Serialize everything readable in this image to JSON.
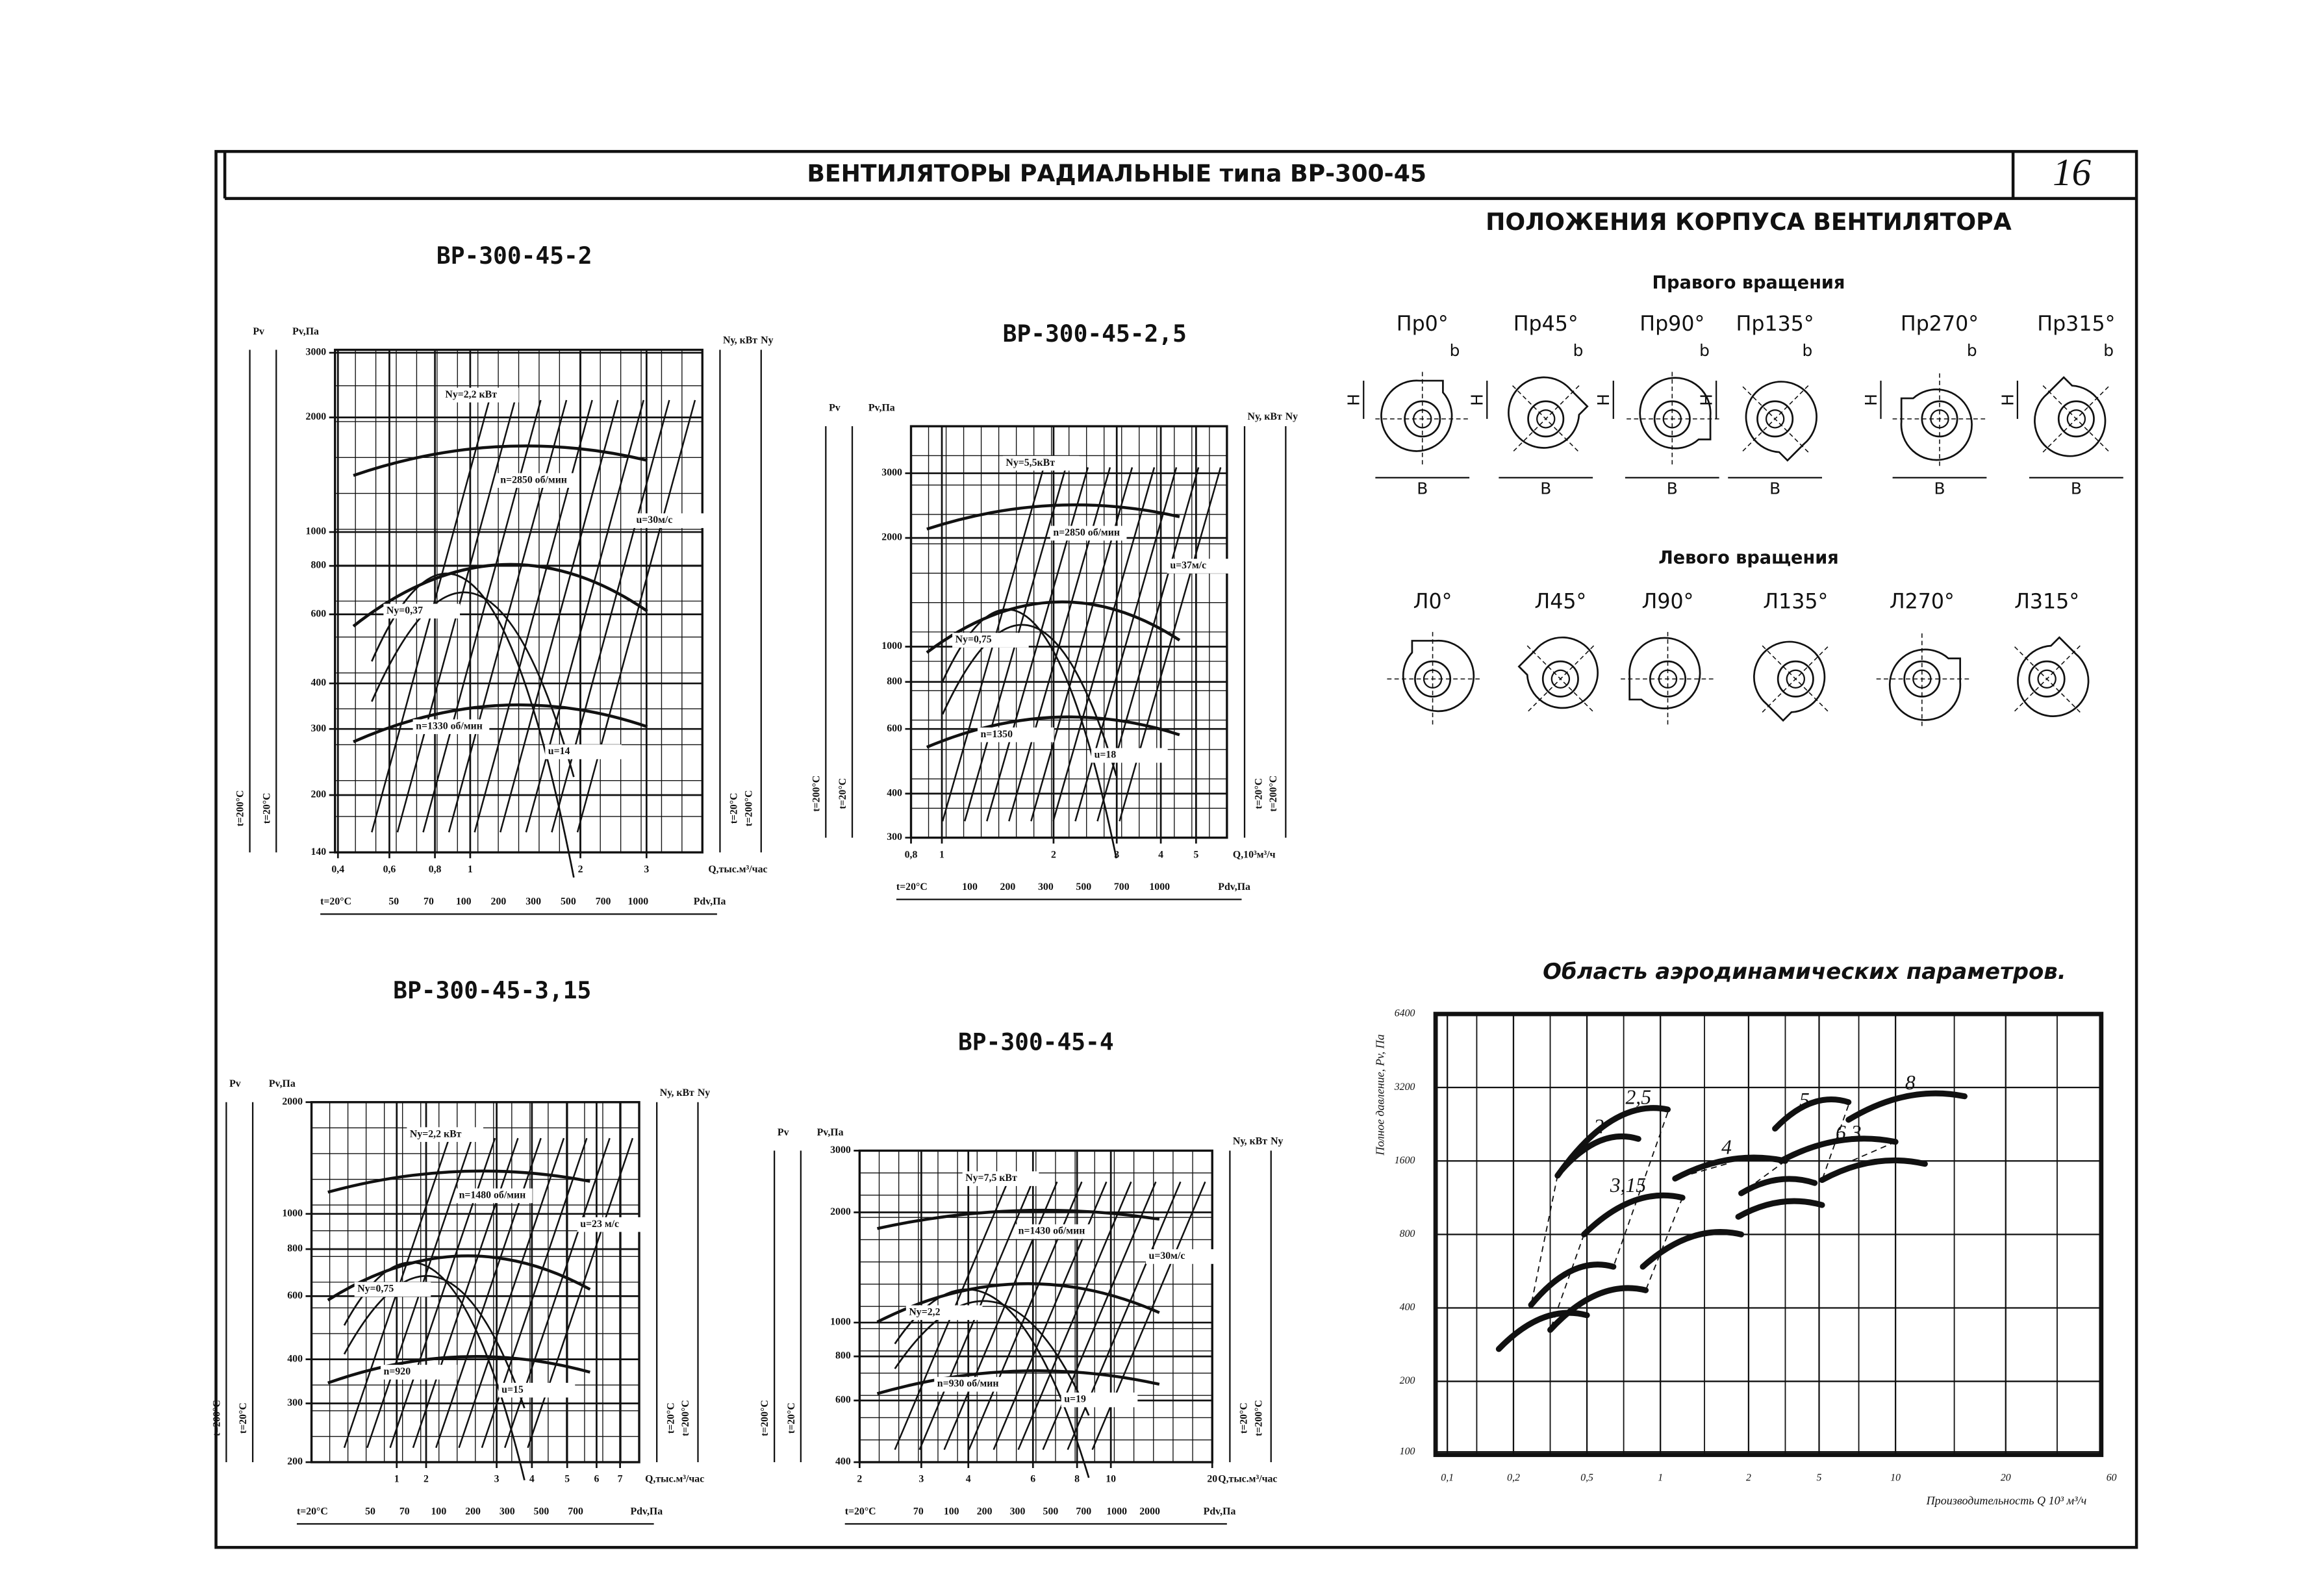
{
  "header": {
    "title": "ВЕНТИЛЯТОРЫ РАДИАЛЬНЫЕ типа ВР-300-45",
    "page": "16"
  },
  "charts": [
    {
      "title": "ВР-300-45-2",
      "y_outer_label": "Pv",
      "y_label": "Pv,Па",
      "n_label": "Nу, кВт",
      "n_outer_label": "Nу",
      "x_label": "Q,тыс.м³/час",
      "yticks": [
        "3000",
        "2000",
        "1000",
        "800",
        "600",
        "400",
        "300",
        "200",
        "140"
      ],
      "xticks": [
        "0,4",
        "0,6",
        "0,8",
        "1",
        "2",
        "3"
      ],
      "pdv_ticks": [
        "50",
        "70",
        "100",
        "200",
        "300",
        "500",
        "700",
        "1000"
      ],
      "pdv_label": "Pdv,Па",
      "t_cold": "t=20°C",
      "t_hot": "t=200°C",
      "annotations": [
        "n=2850 об/мин",
        "u=30м/с",
        "n=1330 об/мин",
        "u=14",
        "Nу=2,2 кВт",
        "Nу=0,37"
      ]
    },
    {
      "title": "ВР-300-45-2,5",
      "y_outer_label": "Pv",
      "y_label": "Pv,Па",
      "n_label": "Nу, кВт",
      "n_outer_label": "Nу",
      "x_label": "Q,10³м³/ч",
      "yticks": [
        "3000",
        "2000",
        "1000",
        "800",
        "600",
        "400",
        "300"
      ],
      "xticks": [
        "0,8",
        "1",
        "2",
        "3",
        "4",
        "5"
      ],
      "pdv_ticks": [
        "100",
        "200",
        "300",
        "500",
        "700",
        "1000"
      ],
      "pdv_label": "Pdv,Па",
      "t_cold": "t=20°C",
      "t_hot": "t=200°C",
      "annotations": [
        "n=2850 об/мин",
        "u=37м/с",
        "n=1350",
        "u=18",
        "Nу=5,5кВт",
        "Nу=0,75"
      ]
    },
    {
      "title": "ВР-300-45-3,15",
      "y_outer_label": "Pv",
      "y_label": "Pv,Па",
      "n_label": "Nу, кВт",
      "n_outer_label": "Nу",
      "x_label": "Q,тыс.м³/час",
      "yticks": [
        "2000",
        "1000",
        "800",
        "600",
        "400",
        "300",
        "200"
      ],
      "xticks": [
        "1",
        "2",
        "3",
        "4",
        "5",
        "6",
        "7"
      ],
      "pdv_ticks": [
        "50",
        "70",
        "100",
        "200",
        "300",
        "500",
        "700"
      ],
      "pdv_label": "Pdv,Па",
      "t_cold": "t=20°C",
      "t_hot": "t=200°C",
      "annotations": [
        "n=1480 об/мин",
        "u=23 м/с",
        "n=920",
        "u=15",
        "Nу=2,2 кВт",
        "Nу=0,75"
      ]
    },
    {
      "title": "ВР-300-45-4",
      "y_outer_label": "Pv",
      "y_label": "Pv,Па",
      "n_label": "Nу, кВт",
      "n_outer_label": "Nу",
      "x_label": "Q,тыс.м³/час",
      "yticks": [
        "3000",
        "2000",
        "1000",
        "800",
        "600",
        "400"
      ],
      "xticks": [
        "2",
        "3",
        "4",
        "6",
        "8",
        "10",
        "20"
      ],
      "pdv_ticks": [
        "70",
        "100",
        "200",
        "300",
        "500",
        "700",
        "1000",
        "2000"
      ],
      "pdv_label": "Pdv,Па",
      "t_cold": "t=20°C",
      "t_hot": "t=200°C",
      "annotations": [
        "n=1430 об/мин",
        "u=30м/с",
        "n=930 об/мин",
        "u=19",
        "Nу=7,5 кВт",
        "Nу=2,2"
      ]
    }
  ],
  "positions": {
    "title": "ПОЛОЖЕНИЯ КОРПУСА ВЕНТИЛЯТОРА",
    "dim_b": "b",
    "dim_h": "H",
    "dim_B": "B",
    "right": {
      "title": "Правого вращения",
      "items": [
        "Пр0°",
        "Пр45°",
        "Пр90°",
        "Пр135°",
        "Пр270°",
        "Пр315°"
      ]
    },
    "left": {
      "title": "Левого вращения",
      "items": [
        "Л0°",
        "Л45°",
        "Л90°",
        "Л135°",
        "Л270°",
        "Л315°"
      ]
    }
  },
  "area": {
    "title": "Область аэродинамических параметров.",
    "y_label": "Полное давление, Pv, Па",
    "x_label": "Производительность Q 10³ м³/ч",
    "yticks": [
      "6400",
      "3200",
      "1600",
      "800",
      "400",
      "200",
      "100"
    ],
    "xticks": [
      "0,1",
      "0,2",
      "0,5",
      "1",
      "2",
      "5",
      "10",
      "20",
      "60"
    ],
    "labels": [
      "2,5",
      "2",
      "3,15",
      "4",
      "5",
      "6,3",
      "8"
    ]
  }
}
